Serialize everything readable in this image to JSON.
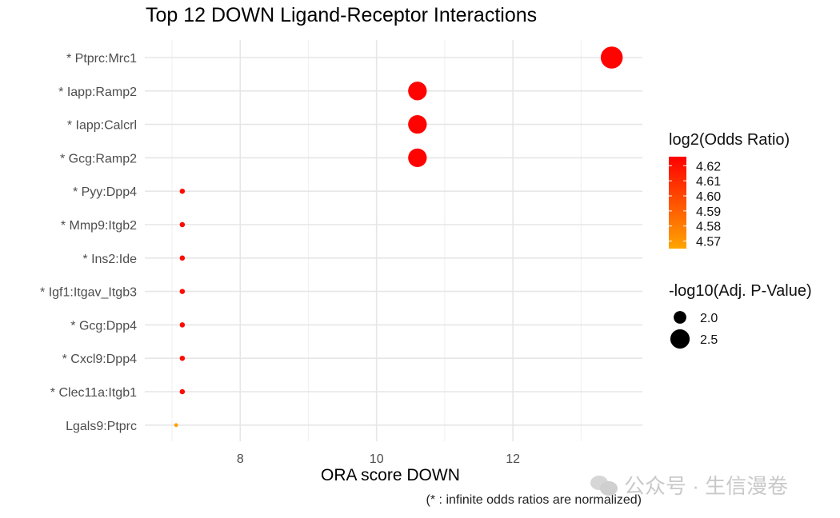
{
  "chart_data": {
    "type": "scatter",
    "title": "Top 12 DOWN Ligand-Receptor Interactions",
    "xlabel": "ORA score DOWN",
    "ylabel": "",
    "caption": "(* : infinite odds ratios are normalized)",
    "xlim": [
      6.6,
      13.9
    ],
    "xticks": [
      8,
      10,
      12
    ],
    "xtick_labels": [
      "8",
      "10",
      "12"
    ],
    "grid": true,
    "categories": [
      "* Ptprc:Mrc1",
      "* Iapp:Ramp2",
      "* Iapp:Calcrl",
      "* Gcg:Ramp2",
      "* Pyy:Dpp4",
      "* Mmp9:Itgb2",
      "* Ins2:Ide",
      "* Igf1:Itgav_Itgb3",
      "* Gcg:Dpp4",
      "* Cxcl9:Dpp4",
      "* Clec11a:Itgb1",
      "Lgals9:Ptprc"
    ],
    "x": [
      13.45,
      10.6,
      10.6,
      10.6,
      7.15,
      7.15,
      7.15,
      7.15,
      7.15,
      7.15,
      7.15,
      7.06
    ],
    "color_values": [
      4.625,
      4.625,
      4.625,
      4.625,
      4.622,
      4.622,
      4.622,
      4.622,
      4.622,
      4.622,
      4.622,
      4.566
    ],
    "size_values": [
      2.8,
      2.55,
      2.55,
      2.55,
      1.55,
      1.55,
      1.55,
      1.55,
      1.55,
      1.55,
      1.55,
      1.45
    ],
    "color_legend": {
      "title": "log2(Odds Ratio)",
      "range": [
        4.565,
        4.626
      ],
      "low_color": "#FFA500",
      "high_color": "#FF0000",
      "breaks": [
        4.62,
        4.61,
        4.6,
        4.59,
        4.58,
        4.57
      ],
      "labels": [
        "4.62",
        "4.61",
        "4.60",
        "4.59",
        "4.58",
        "4.57"
      ]
    },
    "size_legend": {
      "title": "-log10(Adj. P-Value)",
      "breaks": [
        2.0,
        2.5
      ],
      "labels": [
        "2.0",
        "2.5"
      ]
    }
  },
  "watermark": "公众号 · 生信漫卷"
}
